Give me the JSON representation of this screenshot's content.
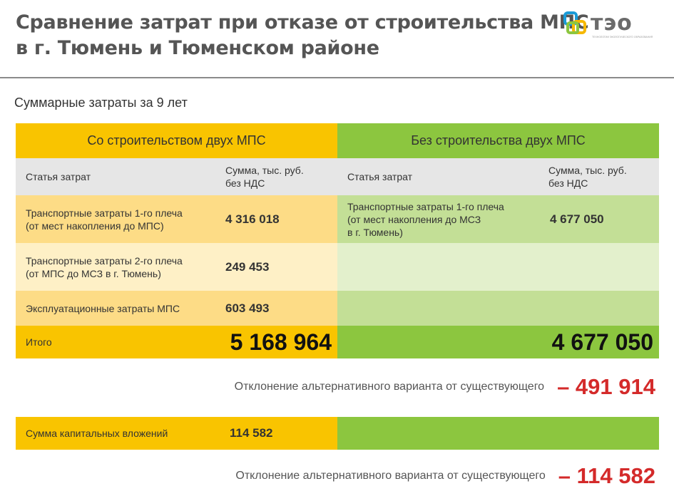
{
  "title": {
    "line1": "Сравнение затрат при отказе от строительства МПС",
    "line2": "в г. Тюмень и Тюменском районе"
  },
  "logo": {
    "text": "тэо",
    "tagline": "ТЕХНОЛОГИИ ЭКОЛОГИЧЕСКОГО ОБРАЗОВАНИЯ",
    "icon": "logo-mark-icon"
  },
  "subtitle": "Суммарные затраты за 9 лет",
  "colors": {
    "orange_header": "#f9c400",
    "green_header": "#8cc63f",
    "orange_row": "#fddc86",
    "orange_row_light": "#fef0c6",
    "green_row": "#c3df96",
    "green_row_light": "#e3f0cc",
    "col_header_gray": "#e6e6e6",
    "deviation_red": "#d42a2a"
  },
  "table": {
    "left_title": "Со строительством двух МПС",
    "right_title": "Без строительства двух МПС",
    "col_item": "Статья затрат",
    "col_sum_line1": "Сумма, тыс. руб.",
    "col_sum_line2": "без НДС",
    "left_rows": [
      {
        "line1": "Транспортные затраты 1-го плеча",
        "line2": "(от мест накопления до МПС)",
        "value": "4 316 018"
      },
      {
        "line1": "Транспортные затраты 2-го плеча",
        "line2": "(от МПС до МСЗ в г. Тюмень)",
        "value": "249 453"
      },
      {
        "line1": "Эксплуатационные затраты МПС",
        "line2": "",
        "value": "603 493"
      }
    ],
    "right_rows": [
      {
        "line1": "Транспортные затраты 1-го плеча",
        "line2": "(от мест накопления до МСЗ",
        "line3": "в г. Тюмень)",
        "value": "4 677 050"
      }
    ],
    "total_label": "Итого",
    "left_total": "5 168 964",
    "right_total": "4 677 050"
  },
  "deviation1": {
    "label": "Отклонение альтернативного варианта от существующего",
    "value": "– 491 914"
  },
  "capital": {
    "label": "Сумма капитальных вложений",
    "value": "114 582"
  },
  "deviation2": {
    "label": "Отклонение альтернативного варианта от существующего",
    "value": "– 114 582"
  }
}
